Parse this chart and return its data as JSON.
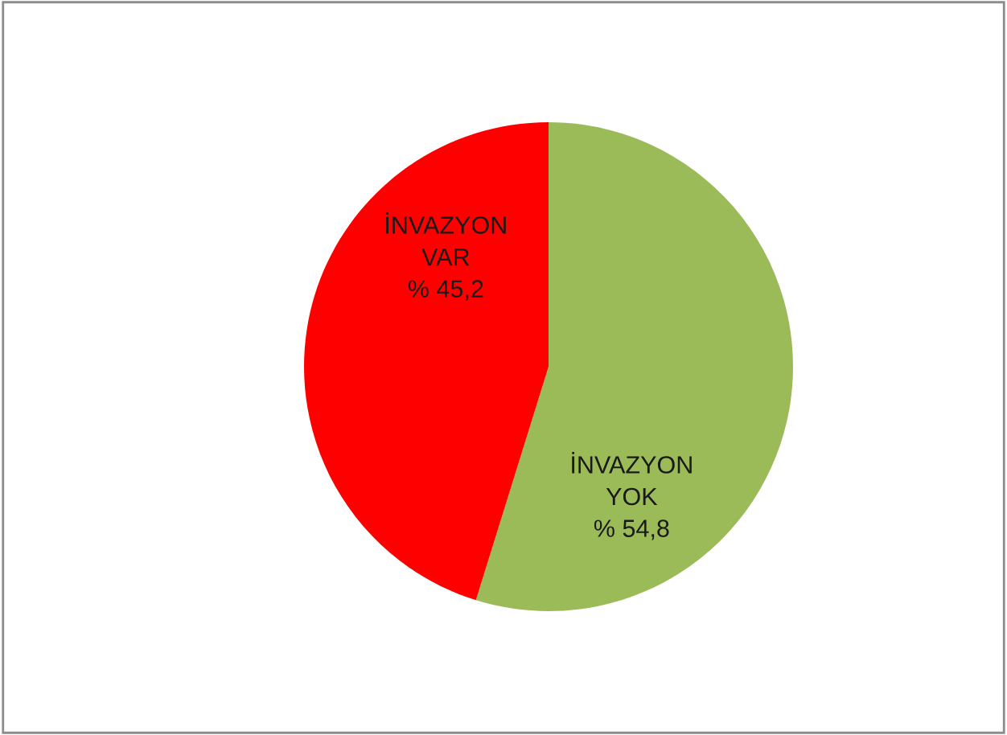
{
  "chart_data": {
    "type": "pie",
    "categories": [
      "İNVAZYON YOK",
      "İNVAZYON VAR"
    ],
    "values": [
      54.8,
      45.2
    ],
    "colors": [
      "#9bbb59",
      "#ff0000"
    ],
    "value_labels": [
      "% 54,8",
      "% 45,2"
    ]
  }
}
